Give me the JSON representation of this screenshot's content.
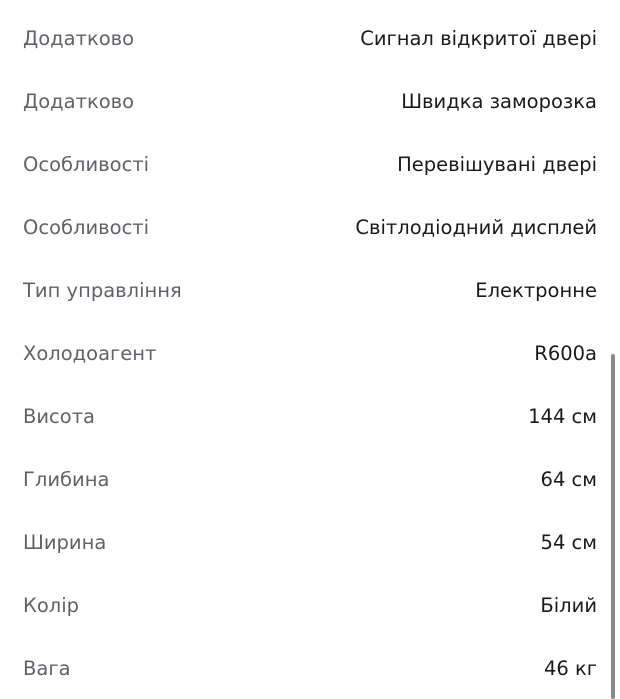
{
  "specs": [
    {
      "label": "Додатково",
      "value": "Сигнал відкритої двері"
    },
    {
      "label": "Додатково",
      "value": "Швидка заморозка"
    },
    {
      "label": "Особливості",
      "value": "Перевішувані двері"
    },
    {
      "label": "Особливості",
      "value": "Світлодіодний дисплей"
    },
    {
      "label": "Тип управління",
      "value": "Електронне"
    },
    {
      "label": "Холодоагент",
      "value": "R600a"
    },
    {
      "label": "Висота",
      "value": "144 см"
    },
    {
      "label": "Глибина",
      "value": "64 см"
    },
    {
      "label": "Ширина",
      "value": "54 см"
    },
    {
      "label": "Колір",
      "value": "Білий"
    },
    {
      "label": "Вага",
      "value": "46 кг"
    }
  ]
}
